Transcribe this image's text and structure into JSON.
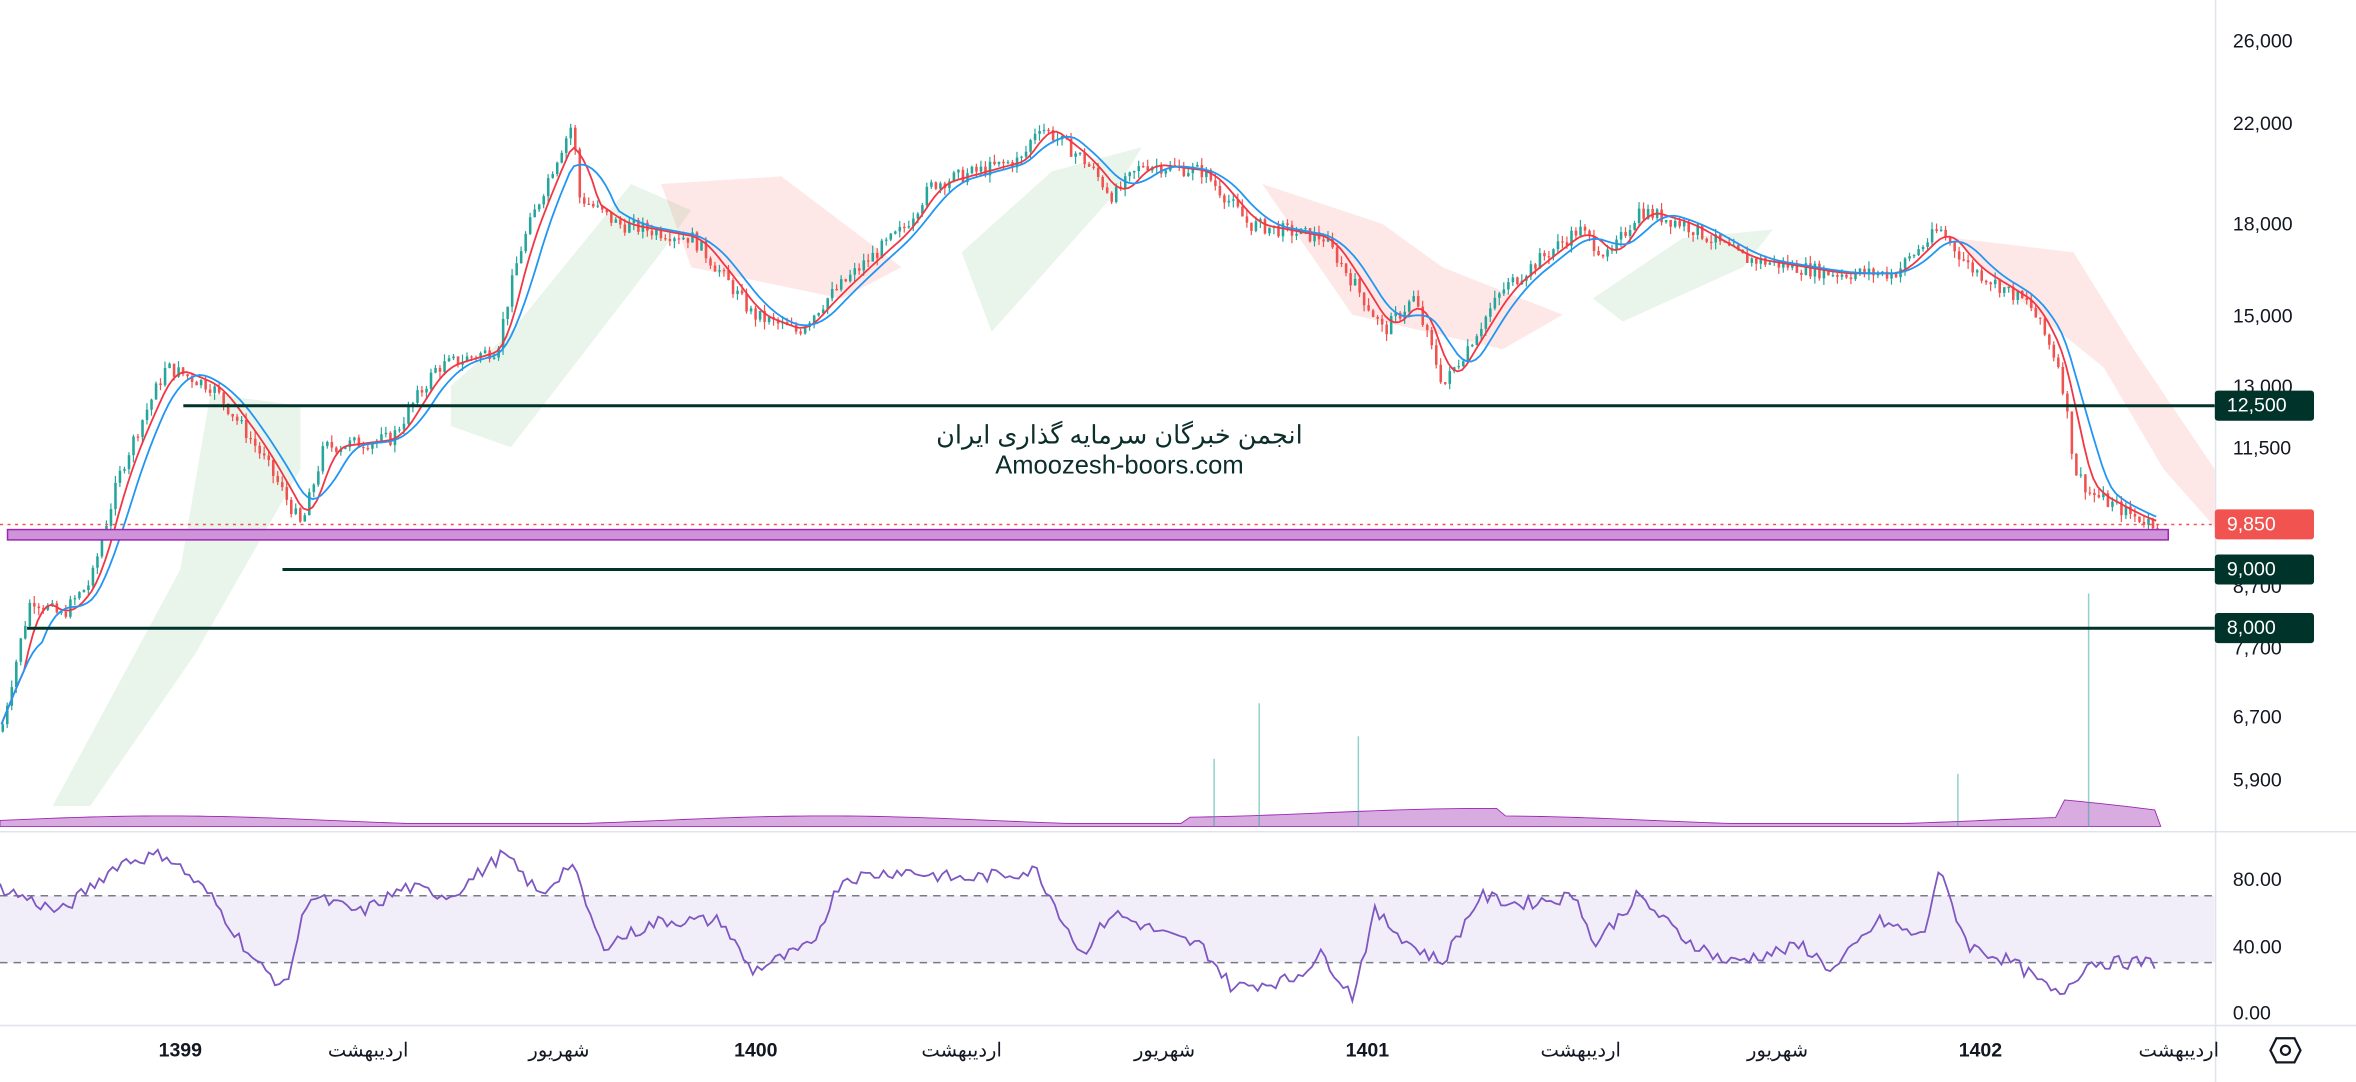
{
  "price_axis": {
    "labels": [
      "26,000",
      "22,000",
      "18,000",
      "15,000",
      "13,000",
      "11,500",
      "8,700",
      "7,700",
      "6,700",
      "5,900"
    ],
    "values": [
      26000,
      22000,
      18000,
      15000,
      13000,
      11500,
      8700,
      7700,
      6700,
      5900
    ]
  },
  "price_tags": [
    {
      "label": "12,500",
      "value": 12500,
      "color": "#00332a"
    },
    {
      "label": "9,850",
      "value": 9850,
      "color": "#f05350"
    },
    {
      "label": "9,000",
      "value": 9000,
      "color": "#00332a"
    },
    {
      "label": "8,000",
      "value": 8000,
      "color": "#00332a"
    }
  ],
  "rsi_axis": {
    "labels": [
      "80.00",
      "40.00",
      "0.00"
    ],
    "values": [
      80,
      40,
      0
    ]
  },
  "time_axis": [
    "1399",
    "اردیبهشت",
    "شهریور",
    "1400",
    "اردیبهشت",
    "شهریور",
    "1401",
    "اردیبهشت",
    "شهریور",
    "1402",
    "اردیبهشت"
  ],
  "watermark": {
    "line1": "انجمن خبرگان سرمایه گذاری ایران",
    "line2": "Amoozesh-boors.com"
  },
  "settings_icon": "hexagon-settings-icon",
  "colors": {
    "up": "#26a69a",
    "down": "#ef5350",
    "ma_fast": "#f23645",
    "ma_slow": "#2196f3",
    "rsi": "#7e57c2",
    "zone": "#ce93d8",
    "level": "#00332a"
  },
  "chart_data": {
    "type": "line",
    "title": "",
    "scale": "log",
    "ylim": [
      5600,
      28000
    ],
    "price_index": [
      0,
      20,
      40,
      60,
      80,
      110,
      140,
      170,
      200,
      215,
      260,
      290,
      330,
      345,
      380,
      385,
      410,
      460,
      500,
      530,
      550,
      600,
      620,
      680,
      690,
      720,
      740,
      760,
      800,
      830,
      880,
      900,
      920,
      940,
      960,
      975,
      1000,
      1050,
      1070,
      1090,
      1120,
      1160,
      1220,
      1260,
      1290,
      1310,
      1350,
      1370,
      1380,
      1390,
      1420,
      1435
    ],
    "price_close": [
      6500,
      8500,
      8200,
      8800,
      11000,
      13500,
      13000,
      11500,
      9800,
      11500,
      11700,
      13500,
      14000,
      17000,
      22000,
      19000,
      18000,
      17500,
      15000,
      14500,
      15500,
      17800,
      19500,
      20500,
      22000,
      20500,
      19000,
      20300,
      20000,
      18000,
      17500,
      16000,
      14500,
      15500,
      13000,
      14000,
      15800,
      17800,
      16800,
      18500,
      18000,
      16800,
      16300,
      16300,
      17800,
      16500,
      15300,
      13500,
      11000,
      10500,
      10000,
      9850
    ],
    "levels": [
      12500,
      9000,
      8000
    ],
    "last_price": 9850,
    "support_zone": [
      9550,
      9750
    ],
    "rsi_index": [
      0,
      40,
      80,
      110,
      140,
      170,
      190,
      205,
      240,
      270,
      300,
      335,
      360,
      380,
      400,
      440,
      480,
      500,
      540,
      560,
      600,
      640,
      690,
      720,
      740,
      780,
      800,
      820,
      860,
      880,
      900,
      915,
      940,
      960,
      985,
      1010,
      1050,
      1060,
      1090,
      1120,
      1150,
      1200,
      1220,
      1250,
      1280,
      1290,
      1310,
      1340,
      1370,
      1390,
      1420,
      1435
    ],
    "rsi_values": [
      75,
      60,
      90,
      95,
      70,
      30,
      15,
      70,
      60,
      75,
      70,
      95,
      70,
      90,
      40,
      55,
      55,
      25,
      40,
      80,
      85,
      80,
      85,
      35,
      60,
      45,
      40,
      15,
      20,
      35,
      10,
      60,
      40,
      30,
      70,
      65,
      70,
      40,
      70,
      45,
      30,
      40,
      25,
      55,
      45,
      85,
      40,
      30,
      10,
      30,
      30,
      30
    ],
    "rsi_bands": [
      70,
      30
    ]
  }
}
